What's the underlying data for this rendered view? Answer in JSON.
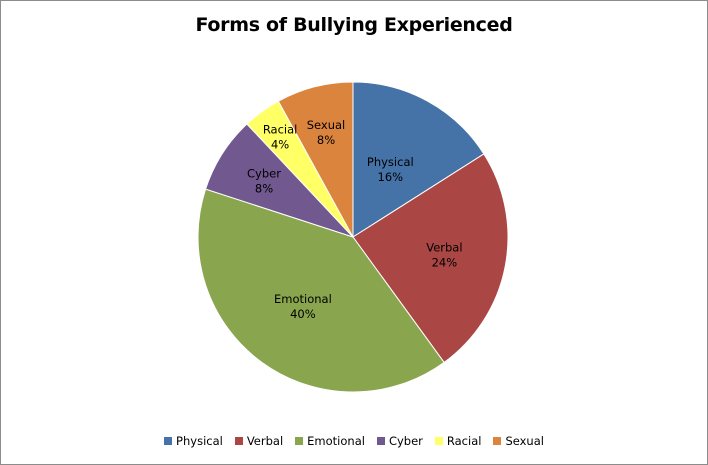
{
  "chart_data": {
    "type": "pie",
    "title": "Forms of Bullying Experienced",
    "legend_position": "bottom",
    "start_angle_deg": 0,
    "direction": "clockwise",
    "series": [
      {
        "name": "Physical",
        "value": 16,
        "label": "16%",
        "color": "#4572A7"
      },
      {
        "name": "Verbal",
        "value": 24,
        "label": "24%",
        "color": "#AA4643"
      },
      {
        "name": "Emotional",
        "value": 40,
        "label": "40%",
        "color": "#89A54E"
      },
      {
        "name": "Cyber",
        "value": 8,
        "label": "8%",
        "color": "#71588F"
      },
      {
        "name": "Racial",
        "value": 4,
        "label": "4%",
        "color": "#FFFF66"
      },
      {
        "name": "Sexual",
        "value": 8,
        "label": "8%",
        "color": "#DB843D"
      }
    ]
  }
}
